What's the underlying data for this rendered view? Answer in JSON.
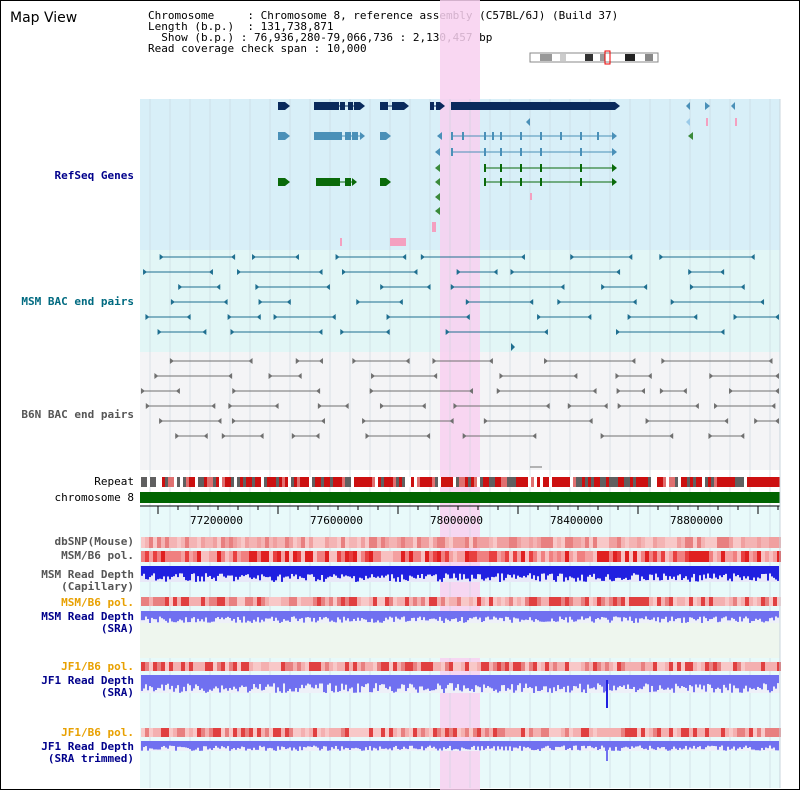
{
  "title": "Map View",
  "info": {
    "chromosome_label": "Chromosome",
    "chromosome_value": "Chromosome 8, reference assembly (C57BL/6J) (Build 37)",
    "length_label": "Length (b.p.)",
    "length_value": "131,738,871",
    "show_label": "Show (b.p.)",
    "show_value": "76,936,280-79,066,736 : 2,130,457 bp",
    "span_label": "Read coverage check span",
    "span_value": "10,000"
  },
  "tracks": {
    "refseq": "RefSeq Genes",
    "msm_bac": "MSM BAC end pairs",
    "b6n_bac": "B6N BAC end pairs",
    "repeat": "Repeat",
    "chromosome": "chromosome 8",
    "dbsnp": "dbSNP(Mouse)",
    "msm_b6_pol": "MSM/B6 pol.",
    "msm_depth_cap": "MSM Read Depth\n(Capillary)",
    "msm_b6_pol2": "MSM/B6 pol.",
    "msm_depth_sra": "MSM Read Depth\n(SRA)",
    "jf1_b6_pol": "JF1/B6 pol.",
    "jf1_depth_sra": "JF1 Read Depth\n(SRA)",
    "jf1_b6_pol2": "JF1/B6 pol.",
    "jf1_depth_trim": "JF1 Read Depth\n(SRA trimmed)"
  },
  "ruler": {
    "ticks": [
      "77200000",
      "77600000",
      "78000000",
      "78400000",
      "78800000"
    ]
  },
  "colors": {
    "refseq_bg": "#d8eff8",
    "msm_bg": "#e2f6f6",
    "b6n_bg": "#f4f4f6",
    "highlight": "#f8d0f0",
    "gene_navy": "#0a2a5c",
    "gene_lightblue": "#4a90b8",
    "gene_green": "#0a6a0a",
    "chrom_green": "#006400",
    "depth_blue": "#2020e0",
    "depth_lightblue": "#7070f0"
  }
}
